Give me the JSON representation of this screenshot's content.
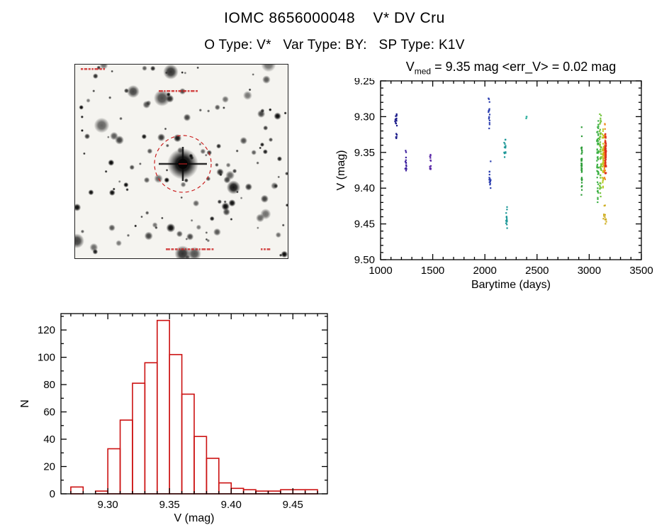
{
  "header": {
    "title": "IOMC 8656000048    V* DV Cru",
    "subtitle": "O Type: V*   Var Type: BY:   SP Type: K1V"
  },
  "finding_chart": {
    "background": "#f5f4f0",
    "annotation_color": "#cc2222",
    "target_circle_color": "#cc2222",
    "seed": 42,
    "star_count": 150
  },
  "lightcurve_title": {
    "prefix": "V",
    "subscript": "med",
    "rest": " = 9.35 mag <err_V> = 0.02 mag"
  },
  "chart_data": [
    {
      "id": "lightcurve",
      "type": "scatter",
      "title": "V_med = 9.35 mag <err_V> = 0.02 mag",
      "xlabel": "Barytime (days)",
      "ylabel": "V (mag)",
      "xlim": [
        1000,
        3500
      ],
      "ylim_top": 9.25,
      "ylim_bottom": 9.5,
      "y_axis_inverted": true,
      "xticks": [
        1000,
        1500,
        2000,
        2500,
        3000,
        3500
      ],
      "x_minor_step": 100,
      "yticks": [
        9.25,
        9.3,
        9.35,
        9.4,
        9.45,
        9.5
      ],
      "y_minor_step": 0.01,
      "point_seed": 7,
      "clusters": [
        {
          "x": 1148,
          "dx": 18,
          "y": 9.306,
          "dy": 0.022,
          "n": 14,
          "color": "#1c1c8a"
        },
        {
          "x": 1152,
          "dx": 10,
          "y": 9.328,
          "dy": 0.01,
          "n": 5,
          "color": "#1c1c8a"
        },
        {
          "x": 1243,
          "dx": 14,
          "y": 9.36,
          "dy": 0.03,
          "n": 13,
          "color": "#3f22a0"
        },
        {
          "x": 1478,
          "dx": 14,
          "y": 9.361,
          "dy": 0.032,
          "n": 13,
          "color": "#5a28a8"
        },
        {
          "x": 2040,
          "dx": 16,
          "y": 9.296,
          "dy": 0.045,
          "n": 16,
          "color": "#2c3fb0"
        },
        {
          "x": 2048,
          "dx": 16,
          "y": 9.383,
          "dy": 0.05,
          "n": 16,
          "color": "#2c3fb0"
        },
        {
          "x": 2192,
          "dx": 16,
          "y": 9.344,
          "dy": 0.026,
          "n": 13,
          "color": "#1e9898"
        },
        {
          "x": 2208,
          "dx": 12,
          "y": 9.447,
          "dy": 0.04,
          "n": 15,
          "color": "#1e9898"
        },
        {
          "x": 2398,
          "dx": 8,
          "y": 9.302,
          "dy": 0.006,
          "n": 3,
          "color": "#27ad9b"
        },
        {
          "x": 2928,
          "dx": 8,
          "y": 9.36,
          "dy": 0.105,
          "n": 42,
          "color": "#2f9e3a"
        },
        {
          "x": 3082,
          "dx": 16,
          "y": 9.358,
          "dy": 0.12,
          "n": 55,
          "color": "#3cb044"
        },
        {
          "x": 3108,
          "dx": 16,
          "y": 9.352,
          "dy": 0.115,
          "n": 55,
          "color": "#74c43c"
        },
        {
          "x": 3132,
          "dx": 14,
          "y": 9.358,
          "dy": 0.1,
          "n": 45,
          "color": "#b8cc2a"
        },
        {
          "x": 3148,
          "dx": 12,
          "y": 9.352,
          "dy": 0.085,
          "n": 55,
          "color": "#f08a1a"
        },
        {
          "x": 3158,
          "dx": 10,
          "y": 9.352,
          "dy": 0.06,
          "n": 55,
          "color": "#dd2f1d"
        },
        {
          "x": 3150,
          "dx": 34,
          "y": 9.438,
          "dy": 0.045,
          "n": 12,
          "color": "#cfae22"
        }
      ]
    },
    {
      "id": "histogram",
      "type": "bar",
      "title": "",
      "xlabel": "V (mag)",
      "ylabel": "N",
      "xlim": [
        9.262,
        9.478
      ],
      "ylim": [
        0,
        132
      ],
      "xticks": [
        9.3,
        9.35,
        9.4,
        9.45
      ],
      "x_minor_step": 0.01,
      "yticks": [
        0,
        20,
        40,
        60,
        80,
        100,
        120
      ],
      "y_minor_step": 10,
      "bin_start": 9.27,
      "bin_width": 0.01,
      "counts": [
        5,
        0,
        2,
        33,
        54,
        81,
        96,
        127,
        102,
        73,
        42,
        26,
        8,
        4,
        3,
        2,
        2,
        3,
        3,
        3
      ],
      "color": "#cc1111"
    }
  ]
}
